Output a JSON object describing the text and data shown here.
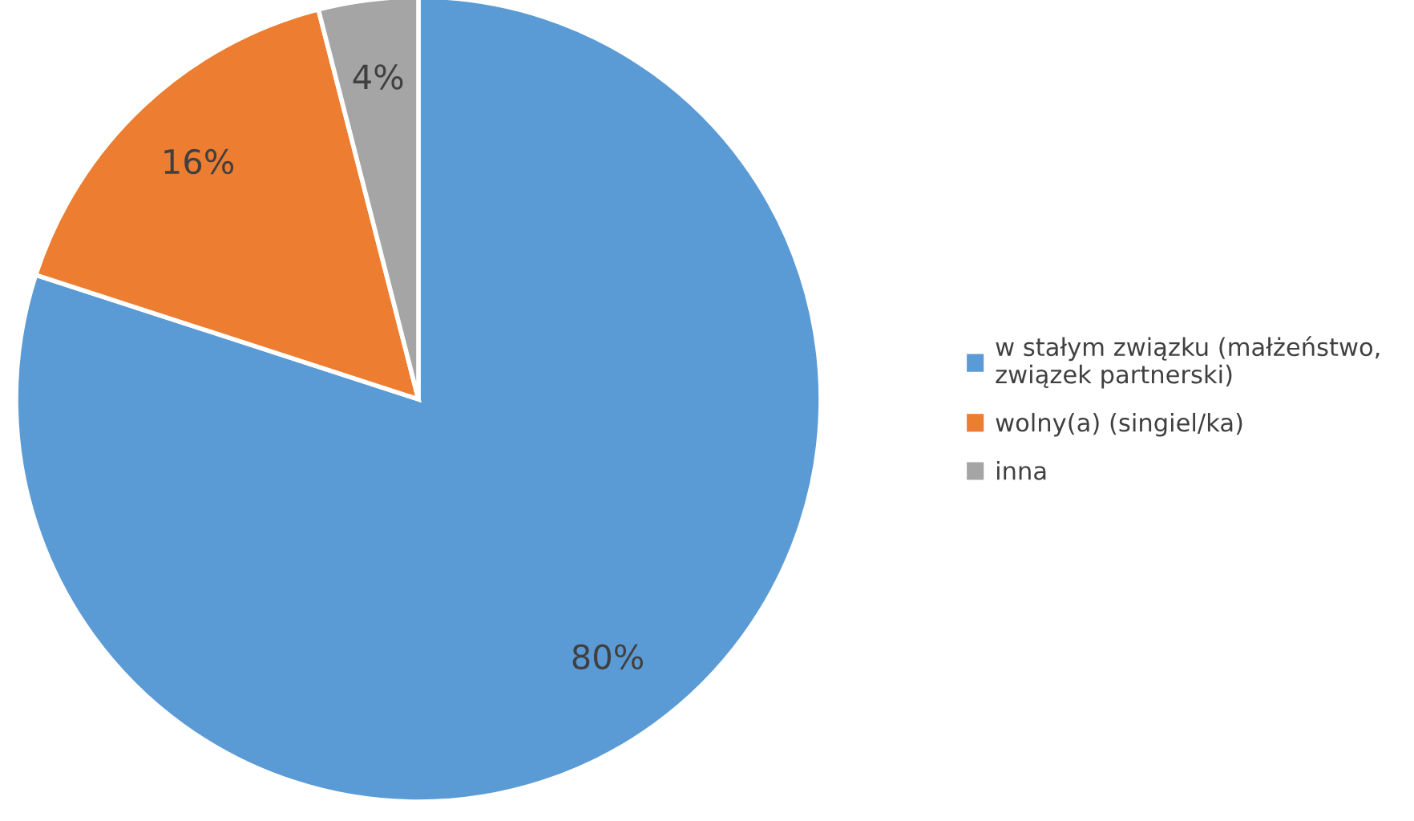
{
  "chart_data": {
    "type": "pie",
    "categories": [
      "w stałym związku (małżeństwo,\nzwiązek partnerski)",
      "wolny(a) (singiel/ka)",
      "inna"
    ],
    "values": [
      80,
      16,
      4
    ],
    "colors": [
      "#5b9bd5",
      "#ed7d31",
      "#a5a5a5"
    ],
    "value_labels": [
      "80%",
      "16%",
      "4%"
    ],
    "legend": "right"
  }
}
